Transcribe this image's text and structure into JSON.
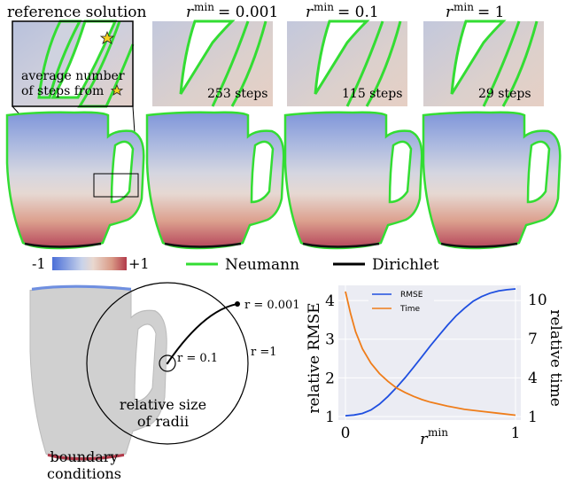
{
  "top_labels": {
    "reference": "reference solution",
    "rmin_symbol": "r",
    "rmin_sup": "min",
    "rmin_001": "= 0.001",
    "rmin_01": "= 0.1",
    "rmin_1": "= 1"
  },
  "zoom_panels": {
    "annotation_line1": "average number",
    "annotation_line2": "of steps from",
    "steps_001": "253 steps",
    "steps_01": "115 steps",
    "steps_1": "29 steps"
  },
  "legend": {
    "min_label": "-1",
    "max_label": "+1",
    "neumann": "Neumann",
    "dirichlet": "Dirichlet",
    "colormap": [
      "#4a6fd8",
      "#c9d3ea",
      "#e9d8cf",
      "#d99a86",
      "#b23a4a"
    ],
    "neumann_color": "#33dd33",
    "dirichlet_color": "#000000"
  },
  "radii_diagram": {
    "r_001": "r = 0.001",
    "r_01": "r = 0.1",
    "r_1": "r =1",
    "caption_line1": "relative size",
    "caption_line2": "of radii",
    "boundary_line1": "boundary",
    "boundary_line2": "conditions"
  },
  "chart_data": {
    "type": "line",
    "xlabel_symbol": "r",
    "xlabel_sup": "min",
    "ylabel": "relative RMSE",
    "y2label": "relative time",
    "xticks": [
      "0",
      "1"
    ],
    "yticks": [
      "1",
      "2",
      "3",
      "4"
    ],
    "y2ticks": [
      "1",
      "4",
      "7",
      "10"
    ],
    "xlim": [
      0,
      1
    ],
    "ylim": [
      1,
      4.3
    ],
    "y2lim": [
      1,
      10.8
    ],
    "series": [
      {
        "name": "RMSE",
        "axis": "left",
        "color": "#1f4fe0",
        "x": [
          0,
          0.05,
          0.1,
          0.15,
          0.2,
          0.25,
          0.3,
          0.35,
          0.4,
          0.45,
          0.5,
          0.55,
          0.6,
          0.65,
          0.7,
          0.75,
          0.8,
          0.85,
          0.9,
          0.95,
          1.0
        ],
        "y": [
          1.02,
          1.04,
          1.08,
          1.17,
          1.32,
          1.52,
          1.75,
          2.0,
          2.27,
          2.55,
          2.83,
          3.1,
          3.36,
          3.6,
          3.8,
          3.98,
          4.1,
          4.19,
          4.25,
          4.28,
          4.3
        ]
      },
      {
        "name": "Time",
        "axis": "right",
        "color": "#ef7d1a",
        "x": [
          0,
          0.03,
          0.06,
          0.1,
          0.15,
          0.2,
          0.25,
          0.3,
          0.35,
          0.4,
          0.45,
          0.5,
          0.6,
          0.7,
          0.8,
          0.9,
          1.0
        ],
        "y": [
          10.6,
          8.9,
          7.5,
          6.2,
          5.1,
          4.3,
          3.7,
          3.2,
          2.85,
          2.55,
          2.3,
          2.1,
          1.8,
          1.55,
          1.4,
          1.25,
          1.1
        ]
      }
    ]
  }
}
